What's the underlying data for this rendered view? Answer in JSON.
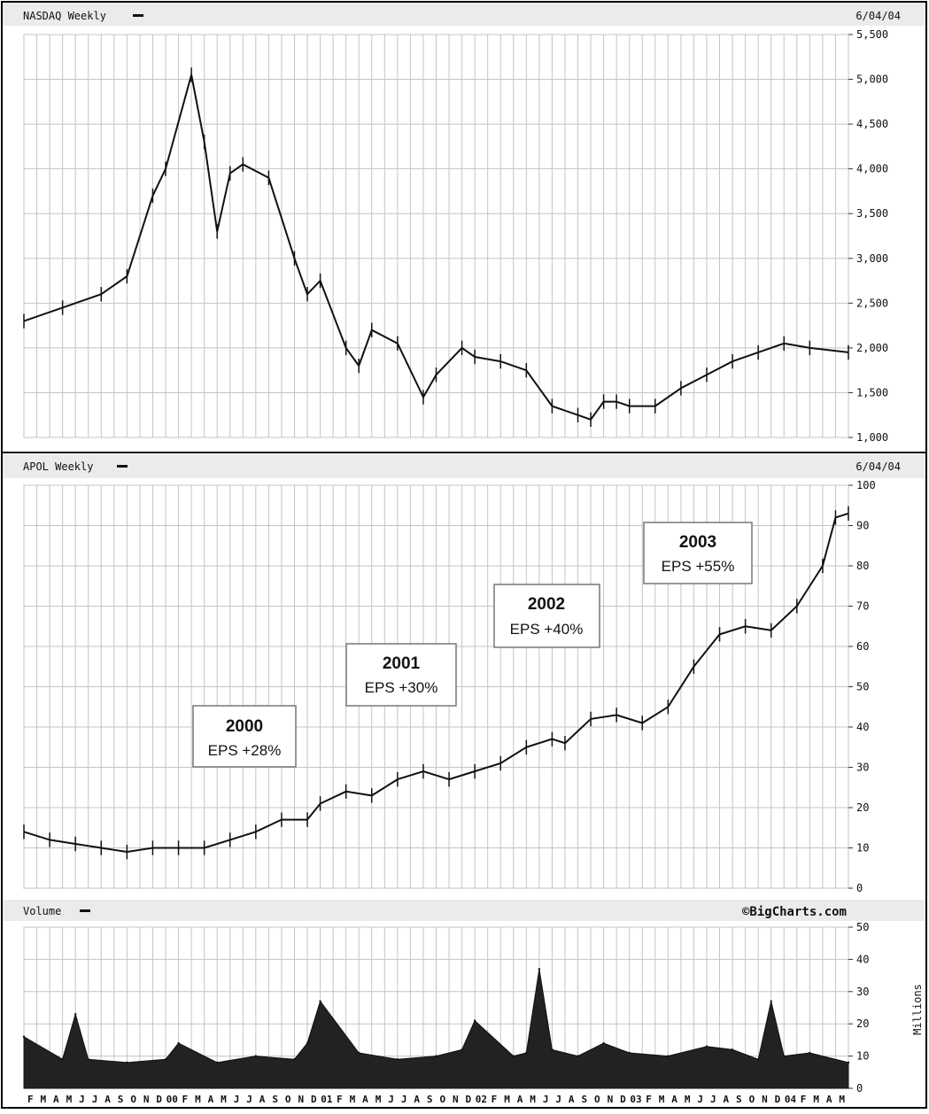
{
  "panels": {
    "nasdaq_header": "NASDAQ Weekly",
    "apol_header": "APOL Weekly",
    "volume_header": "Volume",
    "date_label": "6/04/04",
    "source": "©BigCharts.com",
    "volume_unit": "Millions"
  },
  "x_axis": {
    "month_labels": [
      "F",
      "M",
      "A",
      "M",
      "J",
      "J",
      "A",
      "S",
      "O",
      "N",
      "D",
      "00",
      "F",
      "M",
      "A",
      "M",
      "J",
      "J",
      "A",
      "S",
      "O",
      "N",
      "D",
      "01",
      "F",
      "M",
      "A",
      "M",
      "J",
      "J",
      "A",
      "S",
      "O",
      "N",
      "D",
      "02",
      "F",
      "M",
      "A",
      "M",
      "J",
      "J",
      "A",
      "S",
      "O",
      "N",
      "D",
      "03",
      "F",
      "M",
      "A",
      "M",
      "J",
      "J",
      "A",
      "S",
      "O",
      "N",
      "D",
      "04",
      "F",
      "M",
      "A",
      "M"
    ]
  },
  "chart_data": [
    {
      "type": "line",
      "name": "nasdaq",
      "title": "NASDAQ Weekly",
      "style": "ohlc-weekly",
      "x_start": "1999-02",
      "x_end": "2004-06",
      "x": [
        "1999-02",
        "1999-05",
        "1999-08",
        "1999-10",
        "1999-12",
        "2000-01",
        "2000-03",
        "2000-04",
        "2000-05",
        "2000-06",
        "2000-07",
        "2000-09",
        "2000-11",
        "2000-12",
        "2001-01",
        "2001-03",
        "2001-04",
        "2001-05",
        "2001-07",
        "2001-09",
        "2001-10",
        "2001-12",
        "2002-01",
        "2002-03",
        "2002-05",
        "2002-07",
        "2002-09",
        "2002-10",
        "2002-11",
        "2002-12",
        "2003-01",
        "2003-03",
        "2003-05",
        "2003-07",
        "2003-09",
        "2003-11",
        "2004-01",
        "2004-03",
        "2004-06"
      ],
      "values": [
        2300,
        2450,
        2600,
        2800,
        3700,
        4000,
        5050,
        4300,
        3300,
        3950,
        4050,
        3900,
        3000,
        2600,
        2750,
        2000,
        1800,
        2200,
        2050,
        1450,
        1700,
        2000,
        1900,
        1850,
        1750,
        1350,
        1250,
        1200,
        1400,
        1400,
        1350,
        1350,
        1550,
        1700,
        1850,
        1950,
        2050,
        2000,
        1950
      ],
      "ylim": [
        1000,
        5500
      ],
      "yticks": [
        "5,500",
        "5,000",
        "4,500",
        "4,000",
        "3,500",
        "3,000",
        "2,500",
        "2,000",
        "1,500",
        "1,000"
      ],
      "tick_values": [
        5500,
        5000,
        4500,
        4000,
        3500,
        3000,
        2500,
        2000,
        1500,
        1000
      ],
      "grid": true
    },
    {
      "type": "line",
      "name": "apol",
      "title": "APOL Weekly",
      "style": "ohlc-weekly",
      "x_start": "1999-02",
      "x_end": "2004-06",
      "x": [
        "1999-02",
        "1999-04",
        "1999-06",
        "1999-08",
        "1999-10",
        "1999-12",
        "2000-02",
        "2000-04",
        "2000-06",
        "2000-08",
        "2000-10",
        "2000-12",
        "2001-01",
        "2001-03",
        "2001-05",
        "2001-07",
        "2001-09",
        "2001-11",
        "2002-01",
        "2002-03",
        "2002-05",
        "2002-07",
        "2002-08",
        "2002-10",
        "2002-12",
        "2003-02",
        "2003-04",
        "2003-06",
        "2003-08",
        "2003-10",
        "2003-12",
        "2004-02",
        "2004-04",
        "2004-05",
        "2004-06"
      ],
      "values": [
        14,
        12,
        11,
        10,
        9,
        10,
        10,
        10,
        12,
        14,
        17,
        17,
        21,
        24,
        23,
        27,
        29,
        27,
        29,
        31,
        35,
        37,
        36,
        42,
        43,
        41,
        45,
        55,
        63,
        65,
        64,
        70,
        80,
        92,
        93
      ],
      "ylim": [
        0,
        100
      ],
      "yticks": [
        "100",
        "90",
        "80",
        "70",
        "60",
        "50",
        "40",
        "30",
        "20",
        "10",
        "0"
      ],
      "tick_values": [
        100,
        90,
        80,
        70,
        60,
        50,
        40,
        30,
        20,
        10,
        0
      ],
      "grid": true,
      "annotations": [
        {
          "year": "2000",
          "text": "EPS +28%",
          "anchor_x": "2000-03"
        },
        {
          "year": "2001",
          "text": "EPS +30%",
          "anchor_x": "2001-03"
        },
        {
          "year": "2002",
          "text": "EPS +40%",
          "anchor_x": "2002-03"
        },
        {
          "year": "2003",
          "text": "EPS +55%",
          "anchor_x": "2003-03"
        }
      ]
    },
    {
      "type": "area",
      "name": "volume",
      "title": "Volume",
      "x_start": "1999-02",
      "x_end": "2004-06",
      "x": [
        "1999-02",
        "1999-05",
        "1999-06",
        "1999-07",
        "1999-10",
        "2000-01",
        "2000-02",
        "2000-05",
        "2000-08",
        "2000-11",
        "2000-12",
        "2001-01",
        "2001-04",
        "2001-07",
        "2001-10",
        "2001-12",
        "2002-01",
        "2002-04",
        "2002-05",
        "2002-06",
        "2002-07",
        "2002-09",
        "2002-11",
        "2003-01",
        "2003-04",
        "2003-07",
        "2003-09",
        "2003-11",
        "2003-12",
        "2004-01",
        "2004-03",
        "2004-06"
      ],
      "values": [
        16,
        9,
        23,
        9,
        8,
        9,
        14,
        8,
        10,
        9,
        14,
        27,
        11,
        9,
        10,
        12,
        21,
        10,
        11,
        37,
        12,
        10,
        14,
        11,
        10,
        13,
        12,
        9,
        27,
        10,
        11,
        8
      ],
      "ylim": [
        0,
        50
      ],
      "yticks": [
        "50",
        "40",
        "30",
        "20",
        "10",
        "0"
      ],
      "tick_values": [
        50,
        40,
        30,
        20,
        10,
        0
      ],
      "ylabel": "Millions"
    }
  ]
}
